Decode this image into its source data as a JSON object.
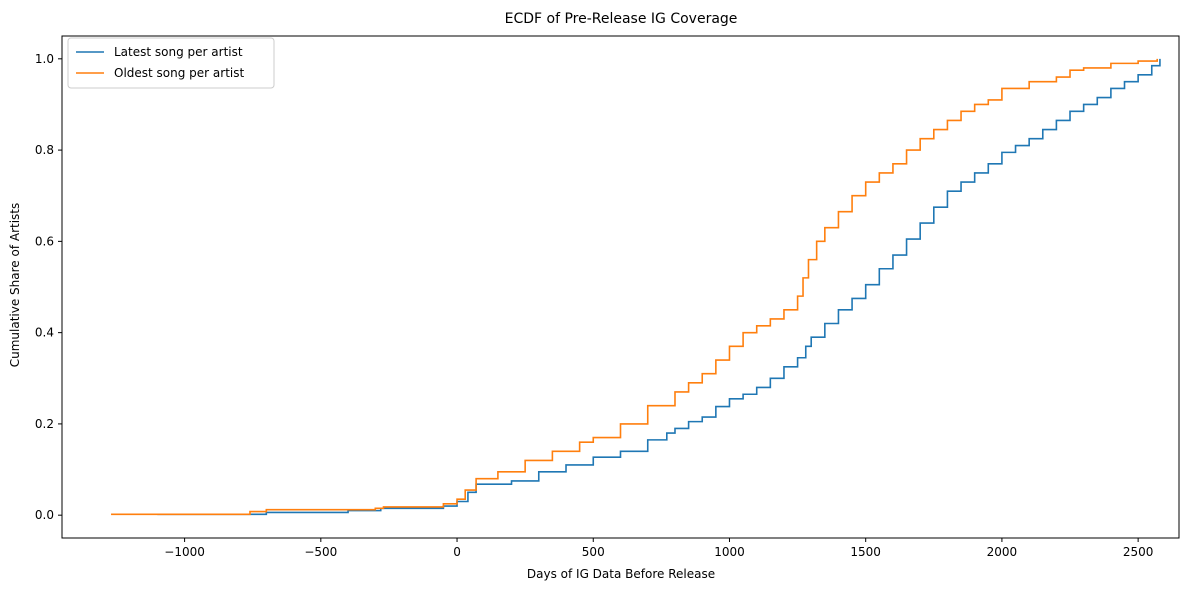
{
  "chart_data": {
    "type": "line",
    "title": "ECDF of Pre-Release IG Coverage",
    "xlabel": "Days of IG Data Before Release",
    "ylabel": "Cumulative Share of Artists",
    "xlim": [
      -1450,
      2650
    ],
    "ylim": [
      -0.05,
      1.05
    ],
    "xticks": [
      -1000,
      -500,
      0,
      500,
      1000,
      1500,
      2000,
      2500
    ],
    "xtick_labels": [
      "−1000",
      "−500",
      "0",
      "500",
      "1000",
      "1500",
      "2000",
      "2500"
    ],
    "yticks": [
      0.0,
      0.2,
      0.4,
      0.6,
      0.8,
      1.0
    ],
    "ytick_labels": [
      "0.0",
      "0.2",
      "0.4",
      "0.6",
      "0.8",
      "1.0"
    ],
    "grid": false,
    "legend_position": "top-left",
    "series": [
      {
        "name": "Latest song per artist",
        "color": "#1f77b4",
        "x": [
          -1100,
          -700,
          -400,
          -280,
          -50,
          0,
          40,
          70,
          200,
          300,
          400,
          500,
          600,
          700,
          770,
          800,
          850,
          900,
          950,
          1000,
          1050,
          1100,
          1150,
          1200,
          1250,
          1280,
          1300,
          1350,
          1400,
          1450,
          1500,
          1550,
          1600,
          1650,
          1700,
          1750,
          1800,
          1850,
          1900,
          1950,
          2000,
          2050,
          2100,
          2150,
          2200,
          2250,
          2300,
          2350,
          2400,
          2450,
          2500,
          2550,
          2580
        ],
        "y": [
          0.002,
          0.006,
          0.01,
          0.015,
          0.02,
          0.03,
          0.05,
          0.068,
          0.075,
          0.095,
          0.11,
          0.127,
          0.14,
          0.165,
          0.18,
          0.19,
          0.205,
          0.215,
          0.238,
          0.255,
          0.265,
          0.28,
          0.3,
          0.325,
          0.345,
          0.37,
          0.39,
          0.42,
          0.45,
          0.475,
          0.505,
          0.54,
          0.57,
          0.605,
          0.64,
          0.675,
          0.71,
          0.73,
          0.75,
          0.77,
          0.795,
          0.81,
          0.825,
          0.845,
          0.865,
          0.885,
          0.9,
          0.915,
          0.935,
          0.95,
          0.965,
          0.985,
          1.0
        ]
      },
      {
        "name": "Oldest song per artist",
        "color": "#ff7f0e",
        "x": [
          -1270,
          -760,
          -700,
          -300,
          -270,
          -50,
          0,
          30,
          70,
          150,
          250,
          350,
          450,
          500,
          600,
          700,
          800,
          850,
          900,
          950,
          1000,
          1050,
          1100,
          1150,
          1200,
          1250,
          1270,
          1290,
          1320,
          1350,
          1400,
          1450,
          1500,
          1550,
          1600,
          1650,
          1700,
          1750,
          1800,
          1850,
          1900,
          1950,
          2000,
          2100,
          2200,
          2250,
          2300,
          2400,
          2500,
          2570
        ],
        "y": [
          0.002,
          0.008,
          0.012,
          0.015,
          0.018,
          0.025,
          0.035,
          0.055,
          0.08,
          0.095,
          0.12,
          0.14,
          0.16,
          0.17,
          0.2,
          0.24,
          0.27,
          0.29,
          0.31,
          0.34,
          0.37,
          0.4,
          0.415,
          0.43,
          0.45,
          0.48,
          0.52,
          0.56,
          0.6,
          0.63,
          0.665,
          0.7,
          0.73,
          0.75,
          0.77,
          0.8,
          0.825,
          0.845,
          0.865,
          0.885,
          0.9,
          0.91,
          0.935,
          0.95,
          0.96,
          0.975,
          0.98,
          0.99,
          0.995,
          1.0
        ]
      }
    ]
  }
}
